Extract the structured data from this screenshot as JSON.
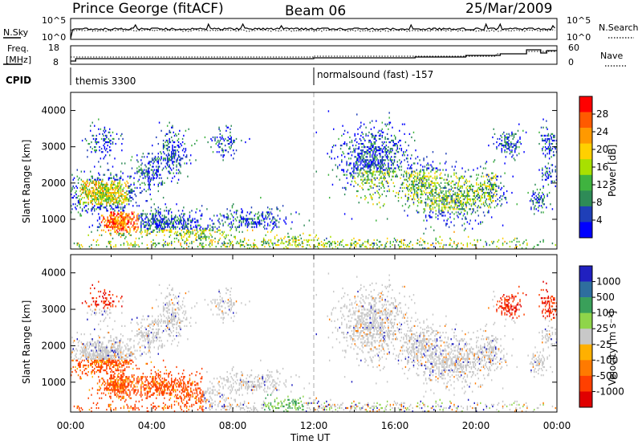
{
  "header": {
    "station": "Prince George (fitACF)",
    "beam": "Beam 06",
    "date": "25/Mar/2009"
  },
  "strip_panels": {
    "nsky_label": "N.Sky",
    "nsearch_label": "N.Search",
    "nsky_ticks": [
      "10^5",
      "10^0"
    ],
    "nsearch_ticks": [
      "10^5",
      "10^0"
    ],
    "freq_label_1": "Freq.",
    "freq_label_2": "[MHz]",
    "freq_ticks": [
      "18",
      "8"
    ],
    "nave_label": "Nave",
    "nave_ticks": [
      "60",
      "0"
    ],
    "cpid_label": "CPID",
    "cpid_segments": [
      {
        "start_hour": 0.0,
        "name": "themis 3300"
      },
      {
        "start_hour": 12.0,
        "name": "normalsound (fast) -157"
      }
    ]
  },
  "chart_data": [
    {
      "type": "heatmap",
      "name": "power",
      "ylabel": "Slant Range [km]",
      "xlabel": "",
      "xlim": [
        0,
        24
      ],
      "ylim": [
        180,
        4500
      ],
      "ytick_labels": [
        "1000",
        "2000",
        "3000",
        "4000"
      ],
      "ytick_values": [
        1000,
        2000,
        3000,
        4000
      ],
      "colorbar_title": "Power [dB]",
      "colorbar_ticks": [
        "28",
        "24",
        "20",
        "16",
        "12",
        "8",
        "4"
      ],
      "colorbar_colors": [
        "#ff0000",
        "#ff5a00",
        "#ff9900",
        "#ffd000",
        "#a8e000",
        "#3fb33f",
        "#2e8b57",
        "#1f3fb8",
        "#0000ff"
      ],
      "color_range": [
        0,
        32
      ]
    },
    {
      "type": "heatmap",
      "name": "velocity",
      "ylabel": "Slant Range [km]",
      "xlabel": "Time UT",
      "xlim": [
        0,
        24
      ],
      "ylim": [
        180,
        4500
      ],
      "xtick_labels": [
        "00:00",
        "04:00",
        "08:00",
        "12:00",
        "16:00",
        "20:00",
        "00:00"
      ],
      "xtick_values": [
        0,
        4,
        8,
        12,
        16,
        20,
        24
      ],
      "ytick_labels": [
        "1000",
        "2000",
        "3000",
        "4000"
      ],
      "ytick_values": [
        1000,
        2000,
        3000,
        4000
      ],
      "colorbar_title": "Velocity [m s⁻¹]",
      "colorbar_ticks": [
        "1000",
        "500",
        "100",
        "25",
        "-25",
        "-100",
        "-500",
        "-1000"
      ],
      "colorbar_colors": [
        "#2020c0",
        "#2e6e9e",
        "#3aa05a",
        "#8fd54a",
        "#c8c8c8",
        "#ffb000",
        "#ff7a00",
        "#ff4000",
        "#e00000"
      ],
      "ground_scatter_color": "#c8c8c8"
    }
  ]
}
